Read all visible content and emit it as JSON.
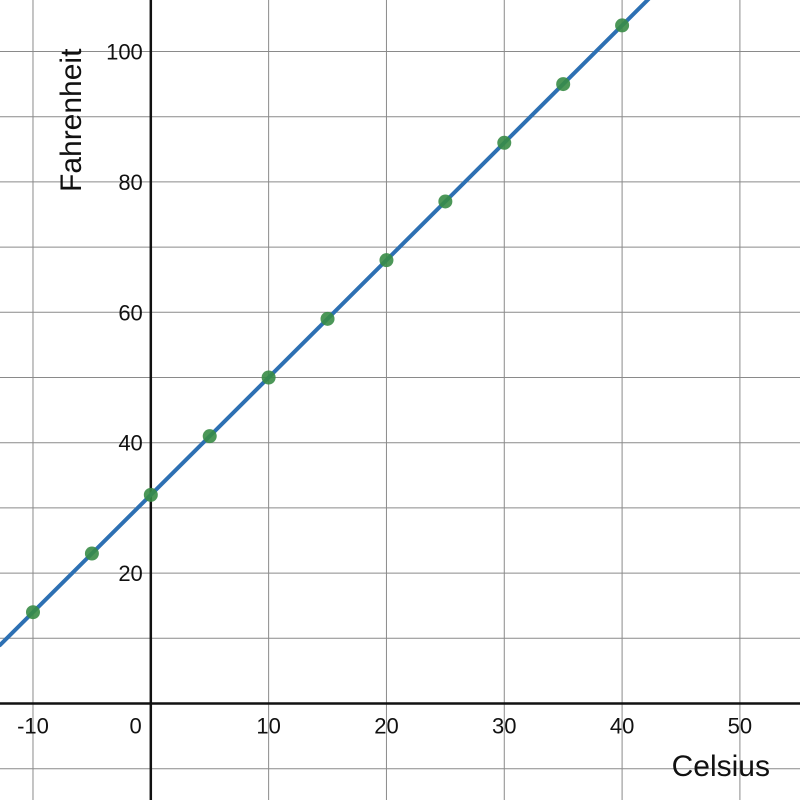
{
  "chart_data": {
    "type": "scatter",
    "title": "",
    "xlabel": "Celsius",
    "ylabel": "Fahrenheit",
    "xlim": [
      -12.8,
      55.1
    ],
    "ylim": [
      -14.8,
      107.9
    ],
    "x_ticks": [
      -10,
      0,
      10,
      20,
      30,
      40,
      50
    ],
    "y_ticks": [
      20,
      40,
      60,
      80,
      100
    ],
    "grid": true,
    "series": [
      {
        "type": "scatter",
        "color": "#388c46",
        "points": [
          {
            "x": -10,
            "y": 14
          },
          {
            "x": -5,
            "y": 23
          },
          {
            "x": 0,
            "y": 32
          },
          {
            "x": 5,
            "y": 41
          },
          {
            "x": 10,
            "y": 50
          },
          {
            "x": 15,
            "y": 59
          },
          {
            "x": 20,
            "y": 68
          },
          {
            "x": 25,
            "y": 77
          },
          {
            "x": 30,
            "y": 86
          },
          {
            "x": 35,
            "y": 95
          },
          {
            "x": 40,
            "y": 104
          }
        ]
      },
      {
        "type": "line",
        "color": "#2d70b3",
        "slope": 1.8,
        "intercept": 32
      }
    ]
  }
}
